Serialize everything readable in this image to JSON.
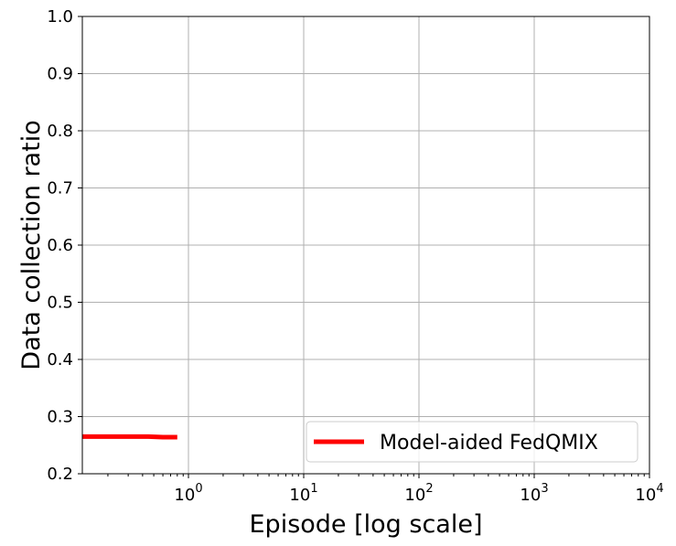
{
  "chart_data": {
    "type": "line",
    "xlabel": "Episode [log scale]",
    "ylabel": "Data collection ratio",
    "x_scale": "log",
    "xlim": [
      0.12,
      10000
    ],
    "ylim": [
      0.2,
      1.0
    ],
    "grid": true,
    "legend_position": "lower-right",
    "x_ticks": [
      {
        "value": 1,
        "base": "10",
        "exp": "0"
      },
      {
        "value": 10,
        "base": "10",
        "exp": "1"
      },
      {
        "value": 100,
        "base": "10",
        "exp": "2"
      },
      {
        "value": 1000,
        "base": "10",
        "exp": "3"
      },
      {
        "value": 10000,
        "base": "10",
        "exp": "4"
      }
    ],
    "y_ticks": [
      {
        "value": 0.2,
        "label": "0.2"
      },
      {
        "value": 0.3,
        "label": "0.3"
      },
      {
        "value": 0.4,
        "label": "0.4"
      },
      {
        "value": 0.5,
        "label": "0.5"
      },
      {
        "value": 0.6,
        "label": "0.6"
      },
      {
        "value": 0.7,
        "label": "0.7"
      },
      {
        "value": 0.8,
        "label": "0.8"
      },
      {
        "value": 0.9,
        "label": "0.9"
      },
      {
        "value": 1.0,
        "label": "1.0"
      }
    ],
    "series": [
      {
        "name": "Model-aided FedQMIX",
        "color": "#ff0000",
        "x": [
          0.12,
          0.2,
          0.3,
          0.45,
          0.6,
          0.8
        ],
        "y": [
          0.265,
          0.265,
          0.265,
          0.265,
          0.264,
          0.264
        ]
      }
    ]
  }
}
